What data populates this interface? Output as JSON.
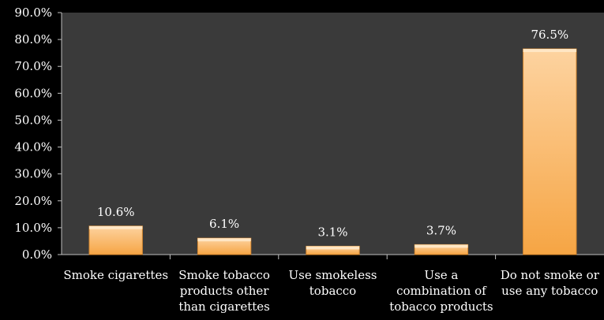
{
  "chart_data": {
    "type": "bar",
    "categories": [
      [
        "Smoke cigarettes"
      ],
      [
        "Smoke tobacco",
        "products other",
        "than cigarettes"
      ],
      [
        "Use smokeless",
        "tobacco"
      ],
      [
        "Use a",
        "combination of",
        "tobacco products"
      ],
      [
        "Do not smoke or",
        "use any tobacco"
      ]
    ],
    "values": [
      10.6,
      6.1,
      3.1,
      3.7,
      76.5
    ],
    "data_labels": [
      "10.6%",
      "6.1%",
      "3.1%",
      "3.7%",
      "76.5%"
    ],
    "y_ticks": [
      0,
      10,
      20,
      30,
      40,
      50,
      60,
      70,
      80,
      90
    ],
    "y_tick_labels": [
      "0.0%",
      "10.0%",
      "20.0%",
      "30.0%",
      "40.0%",
      "50.0%",
      "60.0%",
      "70.0%",
      "80.0%",
      "90.0%"
    ],
    "ylim": [
      0,
      90
    ],
    "title": "",
    "xlabel": "",
    "ylabel": "",
    "grid": false,
    "colors": {
      "background": "#000000",
      "plot_area": "#3a3a3a",
      "bar_light": "#fdd3a0",
      "bar_dark": "#f6a544",
      "bar_edge": "#d98a30",
      "text": "#ffffff",
      "axis": "#bfbfbf"
    }
  }
}
